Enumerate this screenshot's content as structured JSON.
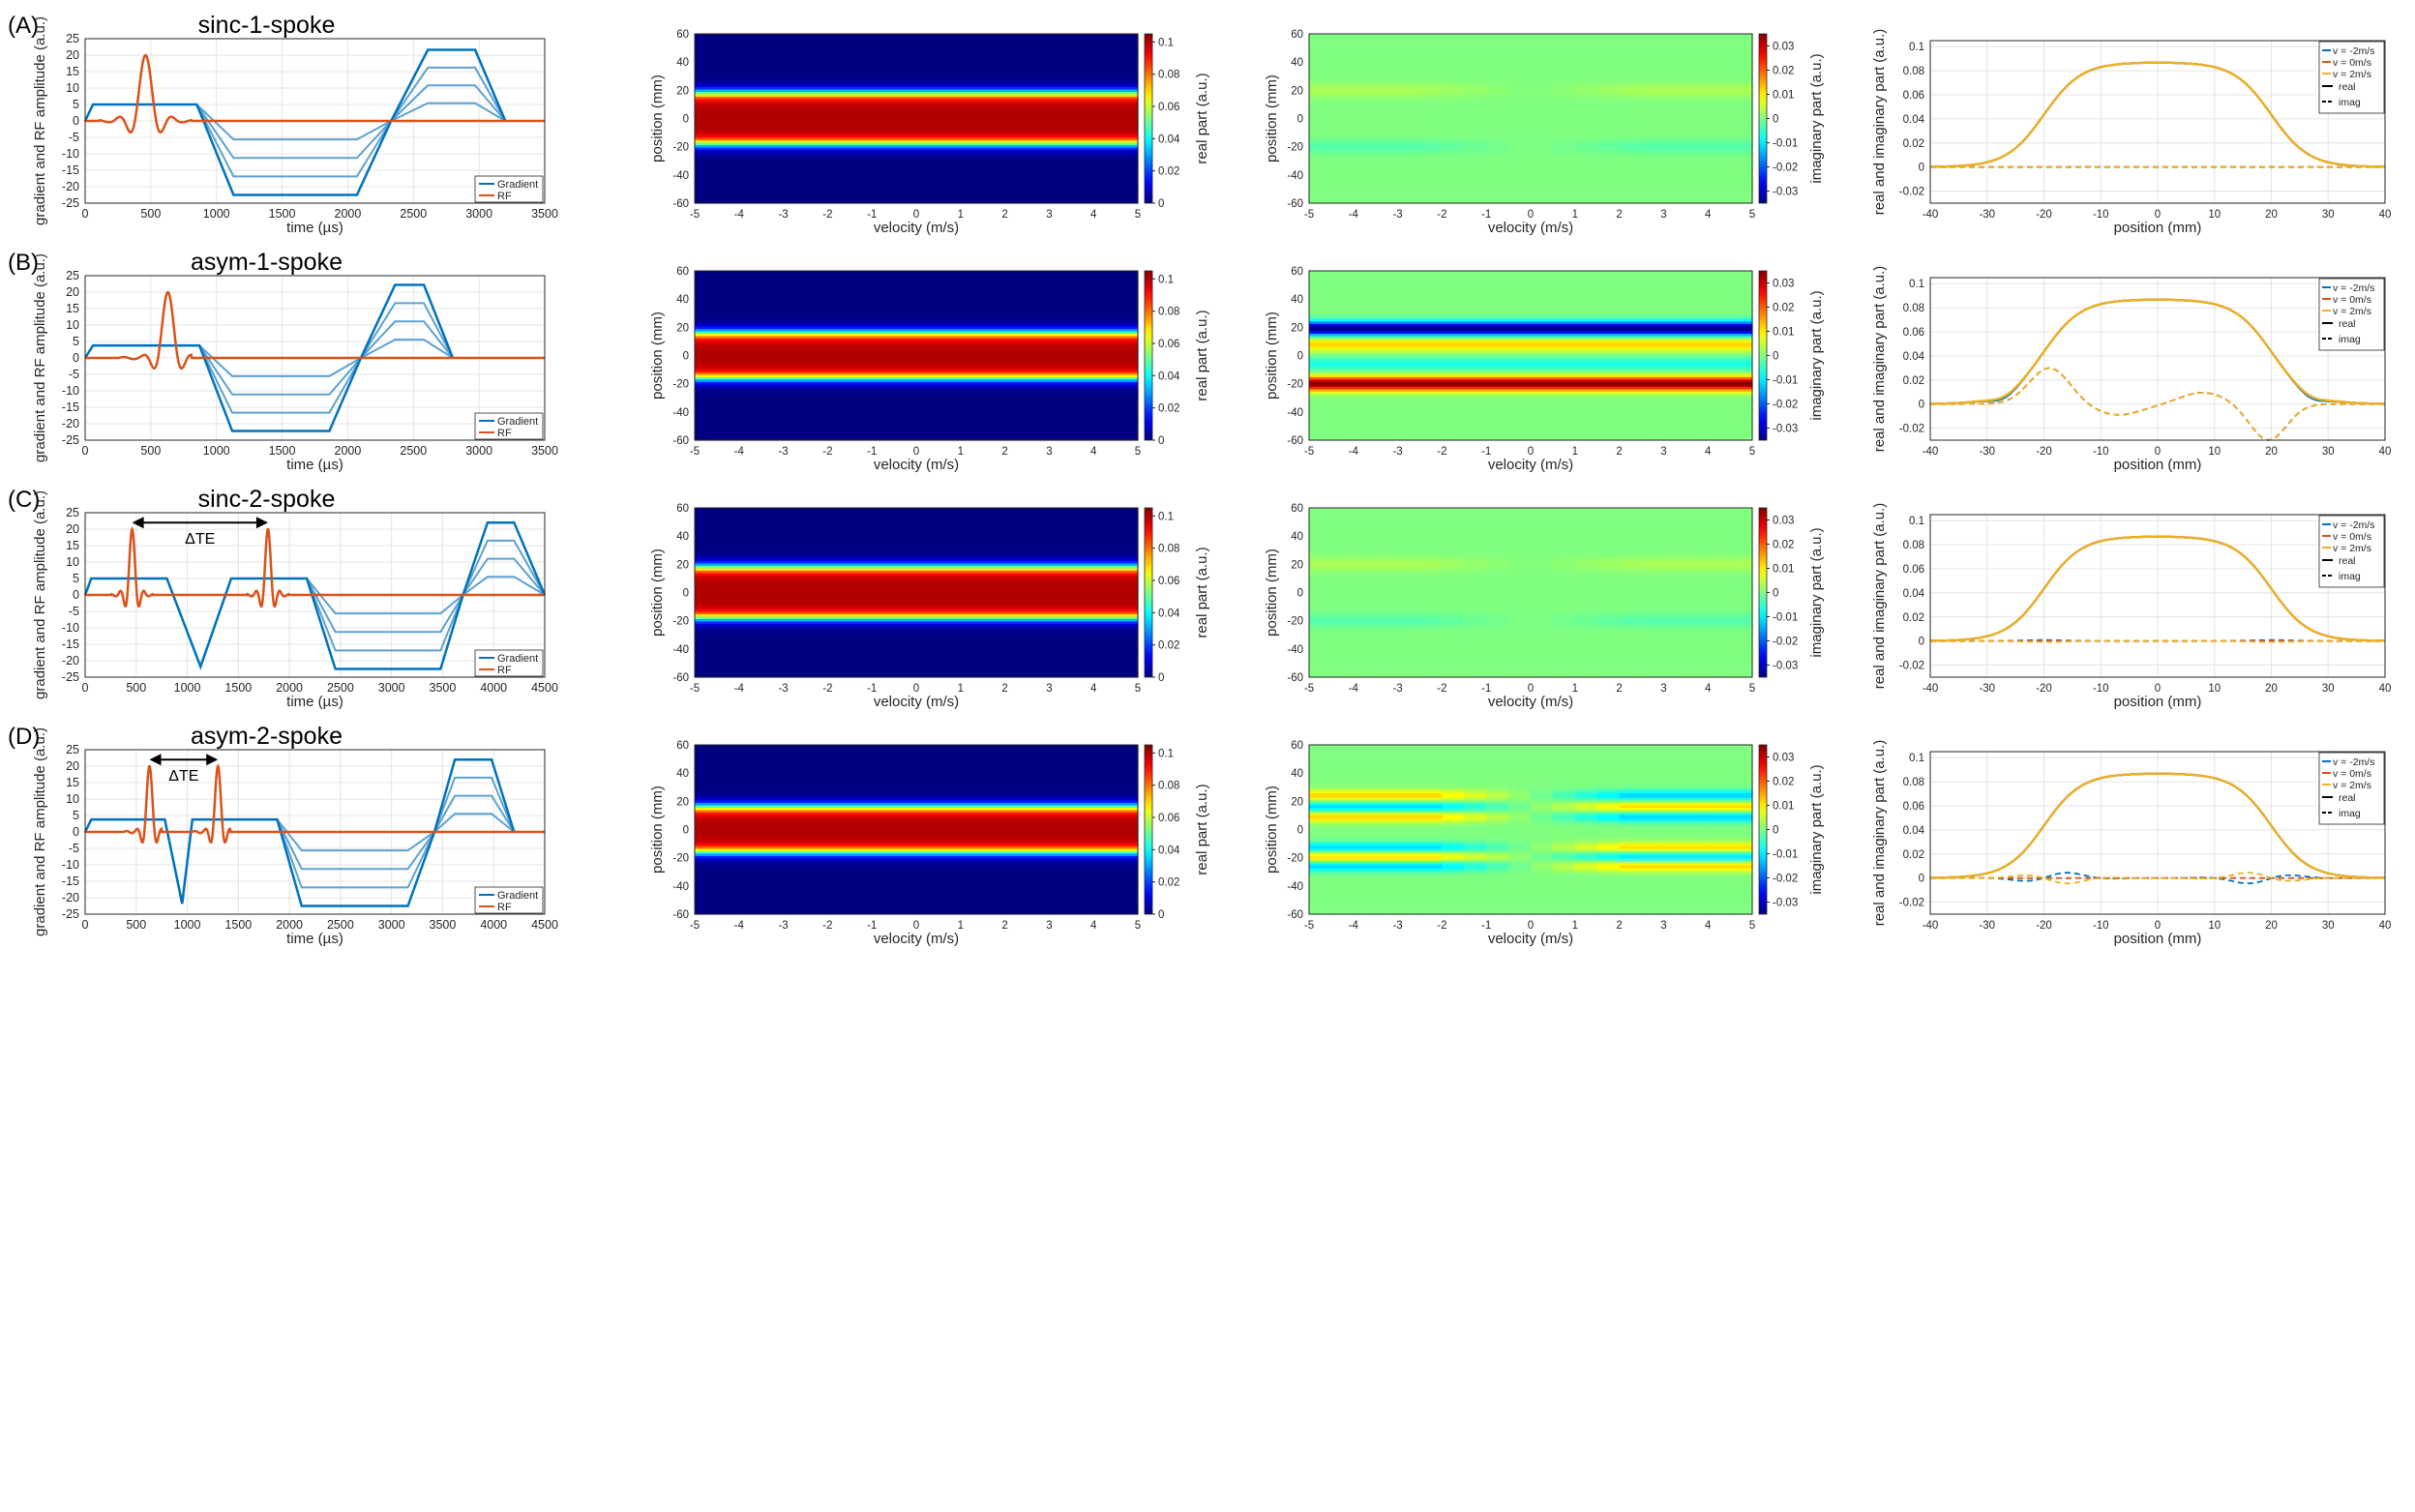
{
  "colors": {
    "gradient": "#0072BD",
    "gradient_light": "#5DA1D0",
    "rf": "#D95319",
    "vneg": "#0072BD",
    "vzero": "#D95319",
    "vpos": "#EDB120",
    "axis": "#262626",
    "grid": "#e4e4e4"
  },
  "rows": [
    {
      "label": "(A)",
      "title": "sinc-1-spoke",
      "dte_label": "",
      "seq": {
        "xmax": 3500,
        "xticks": [
          0,
          500,
          1000,
          1500,
          2000,
          2500,
          3000,
          3500
        ],
        "grad": [
          [
            0,
            0
          ],
          [
            60,
            5
          ],
          [
            850,
            5
          ],
          [
            1130,
            -22.5
          ],
          [
            2070,
            -22.5
          ],
          [
            2330,
            0
          ],
          [
            2610,
            21.6
          ],
          [
            2970,
            21.6
          ],
          [
            3200,
            0
          ]
        ],
        "grad_levels": [
          0.75,
          0.5,
          0.25
        ],
        "rf_center": 460,
        "rf_width": 260,
        "rf_peak": 20,
        "rf_lobes": 2
      },
      "real": {
        "type": "heatmap",
        "pattern": "real",
        "halfwidth": 18,
        "speed": 0
      },
      "imag": {
        "type": "heatmap",
        "pattern": "imag_faint",
        "amp": 0.003
      },
      "profile": {
        "type": "line",
        "real_shape": "plateau",
        "imag_shape": "flat",
        "imag_amp": 0,
        "edge_ripple": 0
      }
    },
    {
      "label": "(B)",
      "title": "asym-1-spoke",
      "dte_label": "",
      "seq": {
        "xmax": 3500,
        "xticks": [
          0,
          500,
          1000,
          1500,
          2000,
          2500,
          3000,
          3500
        ],
        "grad": [
          [
            0,
            0
          ],
          [
            60,
            3.8
          ],
          [
            870,
            3.8
          ],
          [
            1120,
            -22.2
          ],
          [
            1860,
            -22.2
          ],
          [
            2100,
            0
          ],
          [
            2360,
            22.2
          ],
          [
            2580,
            22.2
          ],
          [
            2800,
            0
          ]
        ],
        "grad_levels": [
          0.75,
          0.5,
          0.25
        ],
        "rf_center": 630,
        "rf_width": 240,
        "rf_peak": 20,
        "rf_lobes": 3,
        "rf_asym": true
      },
      "real": {
        "type": "heatmap",
        "pattern": "real",
        "halfwidth": 16,
        "speed": 0
      },
      "imag": {
        "type": "heatmap",
        "pattern": "imag_asym",
        "amp": 0.035
      },
      "profile": {
        "type": "line",
        "real_shape": "plateau",
        "imag_shape": "asym",
        "imag_amp": 0.03,
        "edge_ripple": 0.003
      }
    },
    {
      "label": "(C)",
      "title": "sinc-2-spoke",
      "dte_label": "ΔTE",
      "seq": {
        "xmax": 4500,
        "xticks": [
          0,
          500,
          1000,
          1500,
          2000,
          2500,
          3000,
          3500,
          4000,
          4500
        ],
        "grad": [
          [
            0,
            0
          ],
          [
            60,
            5
          ],
          [
            800,
            5
          ],
          [
            1130,
            -21.8
          ],
          [
            1430,
            5
          ],
          [
            2170,
            5
          ],
          [
            2450,
            -22.5
          ],
          [
            3480,
            -22.5
          ],
          [
            3700,
            0
          ],
          [
            3940,
            22
          ],
          [
            4200,
            22
          ],
          [
            4500,
            0
          ]
        ],
        "grad_levels": [
          0.75,
          0.5,
          0.25
        ],
        "rf_center": 460,
        "rf_center2": 1790,
        "rf_width": 150,
        "rf_peak": 20,
        "rf_lobes": 2,
        "dte": [
          460,
          1790
        ]
      },
      "real": {
        "type": "heatmap",
        "pattern": "real",
        "halfwidth": 18,
        "speed": 0
      },
      "imag": {
        "type": "heatmap",
        "pattern": "imag_faint",
        "amp": 0.003
      },
      "profile": {
        "type": "line",
        "real_shape": "plateau",
        "imag_shape": "flat",
        "imag_amp": 0.0008,
        "edge_ripple": 0
      }
    },
    {
      "label": "(D)",
      "title": "asym-2-spoke",
      "dte_label": "ΔTE",
      "seq": {
        "xmax": 4500,
        "xticks": [
          0,
          500,
          1000,
          1500,
          2000,
          2500,
          3000,
          3500,
          4000,
          4500
        ],
        "grad": [
          [
            0,
            0
          ],
          [
            60,
            3.8
          ],
          [
            780,
            3.8
          ],
          [
            950,
            -21.8
          ],
          [
            1050,
            3.8
          ],
          [
            1880,
            3.8
          ],
          [
            2120,
            -22.5
          ],
          [
            3160,
            -22.5
          ],
          [
            3420,
            0
          ],
          [
            3620,
            22
          ],
          [
            3980,
            22
          ],
          [
            4200,
            0
          ]
        ],
        "grad_levels": [
          0.75,
          0.5,
          0.25
        ],
        "rf_center": 630,
        "rf_center2": 1300,
        "rf_width": 160,
        "rf_peak": 20,
        "rf_lobes": 3,
        "rf_asym": true,
        "dte": [
          630,
          1300
        ]
      },
      "real": {
        "type": "heatmap",
        "pattern": "real",
        "halfwidth": 16,
        "speed": 0
      },
      "imag": {
        "type": "heatmap",
        "pattern": "imag_dual",
        "amp": 0.012
      },
      "profile": {
        "type": "line",
        "real_shape": "plateau",
        "imag_shape": "dual",
        "imag_amp": 0.005,
        "edge_ripple": 0
      }
    }
  ],
  "seq_axes": {
    "xlabel": "time (µs)",
    "ylabel": "gradient and RF amplitude (a.u.)",
    "ylim": [
      -25,
      25
    ],
    "yticks": [
      -25,
      -20,
      -15,
      -10,
      -5,
      0,
      5,
      10,
      15,
      20,
      25
    ],
    "legend": [
      "Gradient",
      "RF"
    ]
  },
  "map_axes": {
    "xlabel": "velocity (m/s)",
    "ylabel": "position (mm)",
    "xlim": [
      -5,
      5
    ],
    "xticks": [
      -5,
      -4,
      -3,
      -2,
      -1,
      0,
      1,
      2,
      3,
      4,
      5
    ],
    "ylim": [
      -60,
      60
    ],
    "yticks": [
      -60,
      -40,
      -20,
      0,
      20,
      40,
      60
    ]
  },
  "real_colorbar": {
    "label": "real part (a.u.)",
    "range": [
      0,
      0.105
    ],
    "ticks": [
      0,
      0.02,
      0.04,
      0.06,
      0.08,
      0.1
    ],
    "ticklabels": [
      "0",
      "0.02",
      "0.04",
      "0.06",
      "0.08",
      "0.1"
    ]
  },
  "imag_colorbar": {
    "label": "imaginary part (a.u.)",
    "range": [
      -0.035,
      0.035
    ],
    "ticks": [
      -0.03,
      -0.02,
      -0.01,
      0,
      0.01,
      0.02,
      0.03
    ],
    "ticklabels": [
      "-0.03",
      "-0.02",
      "-0.01",
      "0",
      "0.01",
      "0.02",
      "0.03"
    ]
  },
  "profile_axes": {
    "xlabel": "position (mm)",
    "ylabel": "real and imaginary part (a.u.)",
    "xlim": [
      -40,
      40
    ],
    "xticks": [
      -40,
      -30,
      -20,
      -10,
      0,
      10,
      20,
      30,
      40
    ],
    "ylim": [
      -0.03,
      0.105
    ],
    "yticks": [
      -0.02,
      0,
      0.02,
      0.04,
      0.06,
      0.08,
      0.1
    ],
    "yticklabels": [
      "-0.02",
      "0",
      "0.02",
      "0.04",
      "0.06",
      "0.08",
      "0.1"
    ],
    "legend": [
      "v = -2m/s",
      "v =  0m/s",
      "v =  2m/s",
      "real",
      "imag"
    ],
    "plateau": 0.087,
    "edge": 20
  }
}
